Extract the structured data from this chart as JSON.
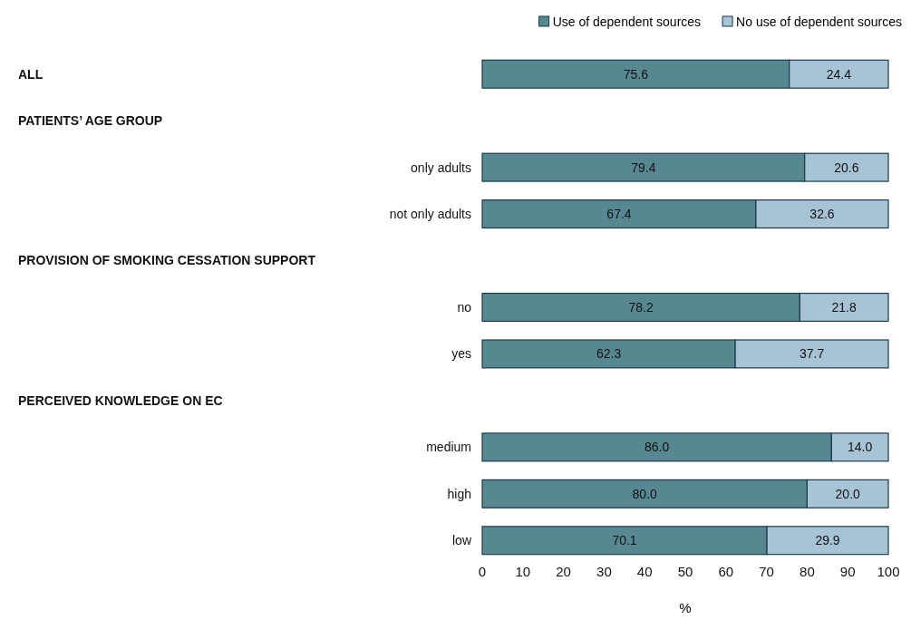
{
  "chart_data": {
    "type": "bar",
    "orientation": "horizontal",
    "stacked": true,
    "xlabel": "%",
    "categories": [
      null,
      null,
      "only adults",
      "not only adults",
      null,
      "no",
      "yes",
      null,
      "medium",
      "high",
      "low"
    ],
    "annotations": [
      "ALL",
      "PATIENTS’ AGE GROUP",
      "PROVISION OF SMOKING CESSATION SUPPORT",
      "PERCEIVED KNOWLEDGE ON EC"
    ],
    "series": [
      {
        "name": "Use of dependent sources",
        "color": "#578892",
        "values": [
          75.6,
          null,
          79.4,
          67.4,
          null,
          78.2,
          62.3,
          null,
          86.0,
          80.0,
          70.1
        ],
        "value_labels": [
          "75.6",
          null,
          "79.4",
          "67.4",
          null,
          "78.2",
          "62.3",
          null,
          "86.0",
          "80.0",
          "70.1"
        ]
      },
      {
        "name": "No use of dependent sources",
        "color": "#a7c3d6",
        "values": [
          24.4,
          null,
          20.6,
          32.6,
          null,
          21.8,
          37.7,
          null,
          14.0,
          20.0,
          29.9
        ],
        "value_labels": [
          "24.4",
          null,
          "20.6",
          "32.6",
          null,
          "21.8",
          "37.7",
          null,
          "14.0",
          "20.0",
          "29.9"
        ]
      }
    ],
    "xlim": [
      0,
      100
    ],
    "xticks": [
      0,
      10,
      20,
      30,
      40,
      50,
      60,
      70,
      80,
      90,
      100
    ],
    "legend": "top right",
    "grid": false
  }
}
